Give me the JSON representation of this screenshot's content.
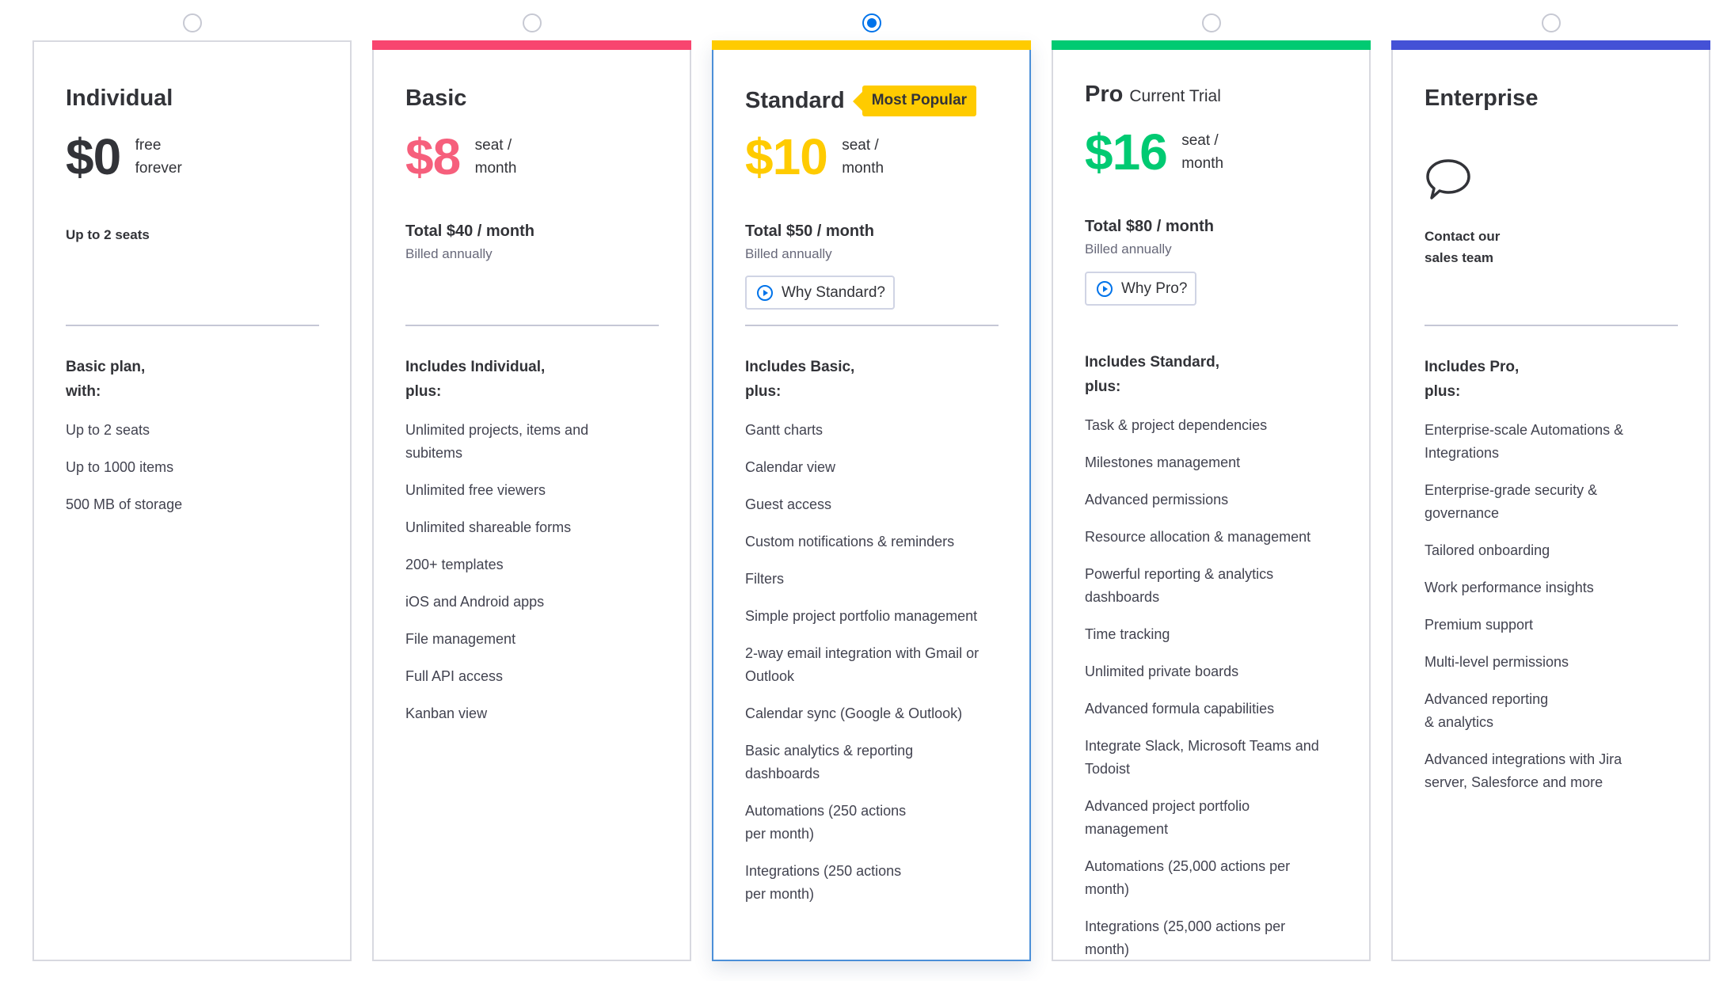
{
  "plans": [
    {
      "id": "individual",
      "name": "Individual",
      "accent": "#323338",
      "topbar": "",
      "selected": false,
      "price": "$0",
      "price_unit": "free forever",
      "seats": "Up to 2 seats",
      "includes": "Basic plan, with:",
      "features": [
        "Up to 2 seats",
        "Up to 1000 items",
        "500 MB of storage"
      ]
    },
    {
      "id": "basic",
      "name": "Basic",
      "accent": "#f65f7c",
      "topbar": "#f8456f",
      "selected": false,
      "price": "$8",
      "price_unit": "seat / month",
      "total": "Total $40 / month",
      "billed": "Billed annually",
      "includes": "Includes Individual, plus:",
      "features": [
        "Unlimited projects, items and subitems",
        "Unlimited free viewers",
        "Unlimited shareable forms",
        "200+ templates",
        "iOS and Android apps",
        "File management",
        "Full API access",
        "Kanban view"
      ]
    },
    {
      "id": "standard",
      "name": "Standard",
      "badge": "Most Popular",
      "accent": "#ffcb00",
      "topbar": "#ffcb00",
      "selected": true,
      "price": "$10",
      "price_unit": "seat / month",
      "total": "Total $50 / month",
      "billed": "Billed annually",
      "why_label": "Why Standard?",
      "includes": "Includes Basic, plus:",
      "features": [
        "Gantt charts",
        "Calendar view",
        "Guest access",
        "Custom notifications & reminders",
        "Filters",
        "Simple project portfolio management",
        "2-way email integration with Gmail or Outlook",
        "Calendar sync (Google & Outlook)",
        "Basic analytics & reporting dashboards",
        "Automations (250 actions per month)",
        "Integrations (250 actions per month)"
      ]
    },
    {
      "id": "pro",
      "name": "Pro",
      "name_sub": "Current Trial",
      "accent": "#00ca72",
      "topbar": "#00ca72",
      "selected": false,
      "price": "$16",
      "price_unit": "seat / month",
      "total": "Total $80 / month",
      "billed": "Billed annually",
      "why_label": "Why Pro?",
      "includes": "Includes Standard, plus:",
      "features": [
        "Task & project dependencies",
        "Milestones management",
        "Advanced permissions",
        "Resource allocation & management",
        "Powerful reporting & analytics dashboards",
        "Time tracking",
        "Unlimited private boards",
        "Advanced formula capabilities",
        "Integrate Slack, Microsoft Teams and Todoist",
        "Advanced project portfolio management",
        "Automations (25,000 actions per month)",
        "Integrations (25,000 actions per month)"
      ]
    },
    {
      "id": "enterprise",
      "name": "Enterprise",
      "accent": "#323338",
      "topbar": "#4451d6",
      "selected": false,
      "icon": "chat-bubble-icon",
      "contact": "Contact our sales team",
      "includes": "Includes Pro, plus:",
      "features": [
        "Enterprise-scale Automations & Integrations",
        "Enterprise-grade security & governance",
        "Tailored onboarding",
        "Work performance insights",
        "Premium support",
        "Multi-level permissions",
        "Advanced reporting & analytics",
        "Advanced integrations with Jira server, Salesforce and more"
      ]
    }
  ]
}
